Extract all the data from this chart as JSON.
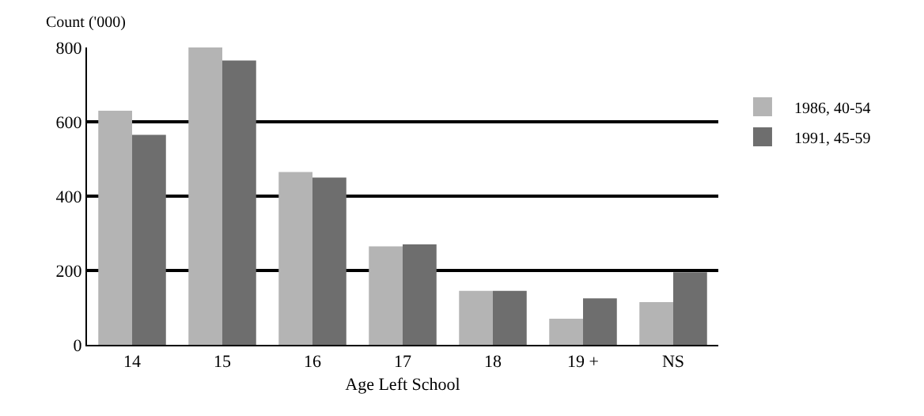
{
  "chart_data": {
    "type": "bar",
    "xlabel": "Age Left School",
    "ylabel": "Count ('000)",
    "categories": [
      "14",
      "15",
      "16",
      "17",
      "18",
      "19 +",
      "NS"
    ],
    "series": [
      {
        "name": "1986, 40-54",
        "color": "#b4b4b4",
        "values": [
          630,
          800,
          465,
          265,
          145,
          70,
          115
        ]
      },
      {
        "name": "1991, 45-59",
        "color": "#6e6e6e",
        "values": [
          565,
          765,
          450,
          270,
          145,
          125,
          195
        ]
      }
    ],
    "ylim": [
      0,
      800
    ],
    "yticks": [
      0,
      200,
      400,
      600,
      800
    ],
    "grid": "y",
    "legend": "right"
  }
}
